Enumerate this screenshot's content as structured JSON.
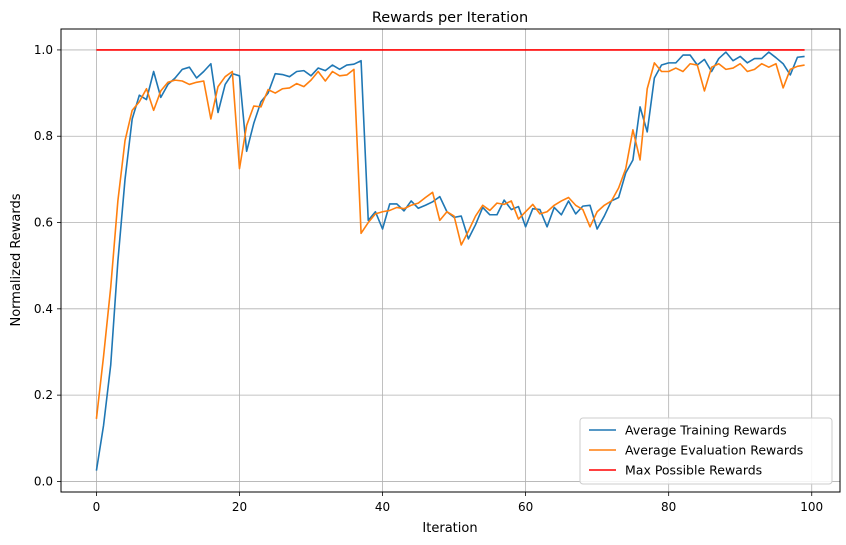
{
  "chart_data": {
    "type": "line",
    "title": "Rewards per Iteration",
    "xlabel": "Iteration",
    "ylabel": "Normalized Rewards",
    "xlim": [
      -4.95,
      103.95
    ],
    "ylim": [
      -0.0245,
      1.0485
    ],
    "x_ticks": [
      0,
      20,
      40,
      60,
      80,
      100
    ],
    "y_ticks": [
      0.0,
      0.2,
      0.4,
      0.6,
      0.8,
      1.0
    ],
    "x_tick_labels": [
      "0",
      "20",
      "40",
      "60",
      "80",
      "100"
    ],
    "y_tick_labels": [
      "0.0",
      "0.2",
      "0.4",
      "0.6",
      "0.8",
      "1.0"
    ],
    "grid": true,
    "legend_position": "lower-right",
    "series": [
      {
        "name": "Average Training Rewards",
        "color": "#1f77b4",
        "x": [
          0,
          1,
          2,
          3,
          4,
          5,
          6,
          7,
          8,
          9,
          10,
          11,
          12,
          13,
          14,
          15,
          16,
          17,
          18,
          19,
          20,
          21,
          22,
          23,
          24,
          25,
          26,
          27,
          28,
          29,
          30,
          31,
          32,
          33,
          34,
          35,
          36,
          37,
          38,
          39,
          40,
          41,
          42,
          43,
          44,
          45,
          46,
          47,
          48,
          49,
          50,
          51,
          52,
          53,
          54,
          55,
          56,
          57,
          58,
          59,
          60,
          61,
          62,
          63,
          64,
          65,
          66,
          67,
          68,
          69,
          70,
          71,
          72,
          73,
          74,
          75,
          76,
          77,
          78,
          79,
          80,
          81,
          82,
          83,
          84,
          85,
          86,
          87,
          88,
          89,
          90,
          91,
          92,
          93,
          94,
          95,
          96,
          97,
          98,
          99
        ],
        "values": [
          0.025,
          0.13,
          0.27,
          0.51,
          0.7,
          0.84,
          0.895,
          0.885,
          0.95,
          0.89,
          0.92,
          0.935,
          0.955,
          0.96,
          0.935,
          0.95,
          0.968,
          0.855,
          0.92,
          0.945,
          0.94,
          0.765,
          0.83,
          0.88,
          0.9,
          0.945,
          0.943,
          0.938,
          0.95,
          0.952,
          0.94,
          0.958,
          0.952,
          0.965,
          0.955,
          0.965,
          0.967,
          0.975,
          0.605,
          0.625,
          0.585,
          0.643,
          0.643,
          0.627,
          0.65,
          0.633,
          0.64,
          0.648,
          0.66,
          0.625,
          0.612,
          0.615,
          0.562,
          0.595,
          0.635,
          0.618,
          0.618,
          0.652,
          0.63,
          0.637,
          0.59,
          0.632,
          0.63,
          0.59,
          0.635,
          0.618,
          0.65,
          0.62,
          0.638,
          0.64,
          0.585,
          0.615,
          0.65,
          0.658,
          0.715,
          0.745,
          0.868,
          0.81,
          0.935,
          0.965,
          0.97,
          0.97,
          0.988,
          0.988,
          0.965,
          0.978,
          0.95,
          0.98,
          0.995,
          0.975,
          0.985,
          0.97,
          0.98,
          0.98,
          0.995,
          0.982,
          0.968,
          0.942,
          0.983,
          0.985
        ]
      },
      {
        "name": "Average Evaluation Rewards",
        "color": "#ff7f0e",
        "x": [
          0,
          1,
          2,
          3,
          4,
          5,
          6,
          7,
          8,
          9,
          10,
          11,
          12,
          13,
          14,
          15,
          16,
          17,
          18,
          19,
          20,
          21,
          22,
          23,
          24,
          25,
          26,
          27,
          28,
          29,
          30,
          31,
          32,
          33,
          34,
          35,
          36,
          37,
          38,
          39,
          40,
          41,
          42,
          43,
          44,
          45,
          46,
          47,
          48,
          49,
          50,
          51,
          52,
          53,
          54,
          55,
          56,
          57,
          58,
          59,
          60,
          61,
          62,
          63,
          64,
          65,
          66,
          67,
          68,
          69,
          70,
          71,
          72,
          73,
          74,
          75,
          76,
          77,
          78,
          79,
          80,
          81,
          82,
          83,
          84,
          85,
          86,
          87,
          88,
          89,
          90,
          91,
          92,
          93,
          94,
          95,
          96,
          97,
          98,
          99
        ],
        "values": [
          0.145,
          0.29,
          0.45,
          0.65,
          0.79,
          0.86,
          0.88,
          0.91,
          0.86,
          0.905,
          0.925,
          0.93,
          0.928,
          0.92,
          0.925,
          0.928,
          0.84,
          0.915,
          0.938,
          0.95,
          0.725,
          0.825,
          0.87,
          0.868,
          0.908,
          0.9,
          0.91,
          0.912,
          0.922,
          0.915,
          0.93,
          0.95,
          0.928,
          0.95,
          0.94,
          0.942,
          0.955,
          0.575,
          0.6,
          0.62,
          0.625,
          0.628,
          0.635,
          0.632,
          0.64,
          0.645,
          0.658,
          0.67,
          0.605,
          0.625,
          0.615,
          0.548,
          0.58,
          0.615,
          0.64,
          0.628,
          0.645,
          0.642,
          0.65,
          0.608,
          0.625,
          0.642,
          0.62,
          0.625,
          0.64,
          0.65,
          0.658,
          0.64,
          0.63,
          0.59,
          0.625,
          0.64,
          0.65,
          0.68,
          0.725,
          0.815,
          0.745,
          0.91,
          0.97,
          0.95,
          0.95,
          0.958,
          0.95,
          0.968,
          0.965,
          0.905,
          0.96,
          0.968,
          0.955,
          0.958,
          0.968,
          0.95,
          0.955,
          0.968,
          0.96,
          0.968,
          0.912,
          0.955,
          0.962,
          0.965
        ]
      },
      {
        "name": "Max Possible Rewards",
        "color": "#ff0000",
        "x": [
          0,
          99
        ],
        "values": [
          1.0,
          1.0
        ]
      }
    ]
  }
}
